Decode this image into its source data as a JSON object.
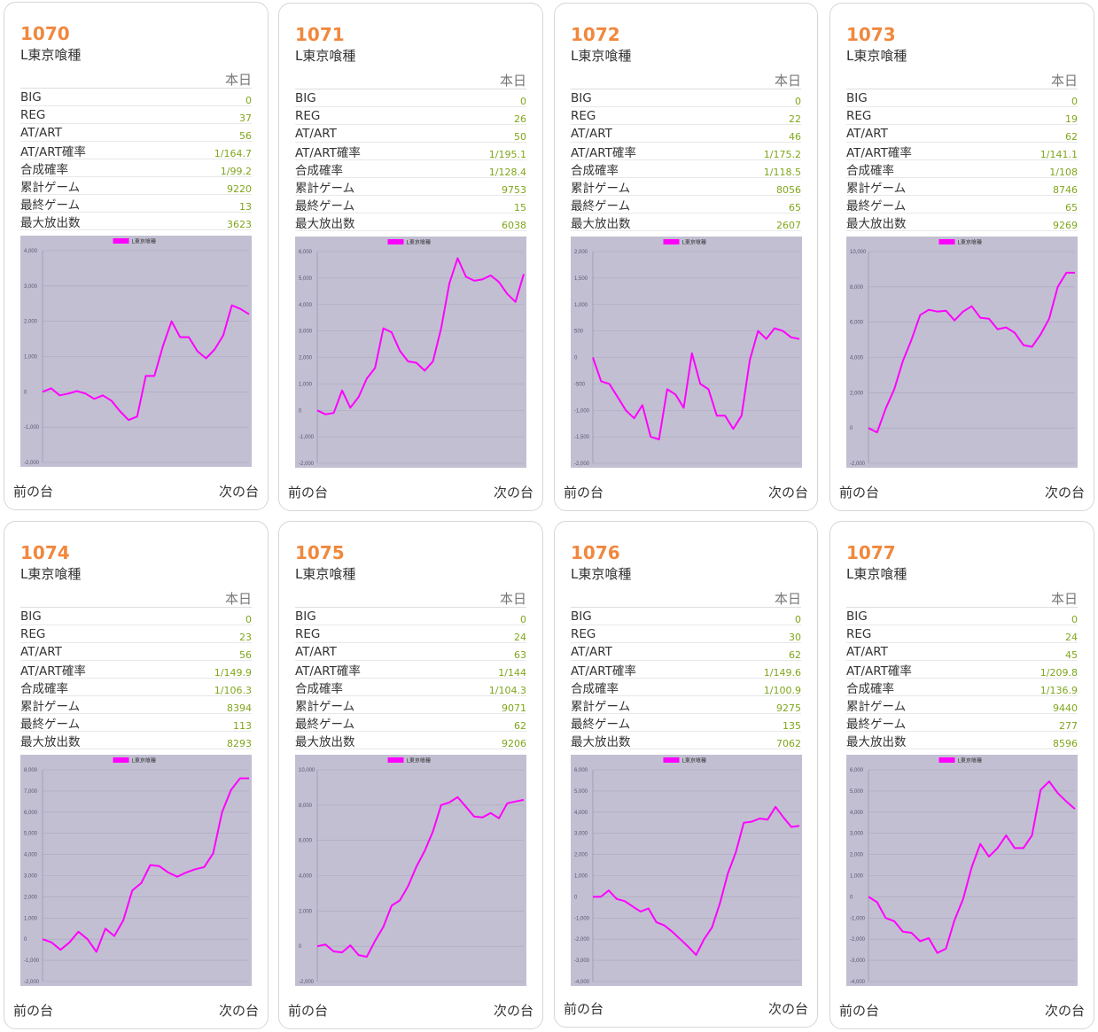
{
  "stat_header": "本日",
  "stat_labels": [
    "BIG",
    "REG",
    "AT/ART",
    "AT/ART確率",
    "合成確率",
    "累計ゲーム",
    "最終ゲーム",
    "最大放出数"
  ],
  "nav": {
    "prev": "前の台",
    "next": "次の台"
  },
  "colors": {
    "number": "#f0883e",
    "value": "#7fa61b",
    "line": "#ff00ff",
    "plot_bg": "#c2bfd2"
  },
  "machines": [
    {
      "number": "1070",
      "name": "L東京喰種",
      "stats": [
        "0",
        "37",
        "56",
        "1/164.7",
        "1/99.2",
        "9220",
        "13",
        "3623"
      ],
      "chart_data": {
        "type": "line",
        "legend": "L東京喰種",
        "ylim": [
          -2000,
          4000
        ],
        "yticks": [
          "4,000",
          "3,000",
          "2,000",
          "1,000",
          "0",
          "-1,000",
          "-2,000"
        ],
        "values": [
          0,
          100,
          -100,
          -50,
          20,
          -50,
          -200,
          -100,
          -250,
          -550,
          -800,
          -700,
          450,
          450,
          1300,
          2000,
          1550,
          1550,
          1150,
          950,
          1200,
          1600,
          2450,
          2350,
          2200
        ]
      }
    },
    {
      "number": "1071",
      "name": "L東京喰種",
      "stats": [
        "0",
        "26",
        "50",
        "1/195.1",
        "1/128.4",
        "9753",
        "15",
        "6038"
      ],
      "chart_data": {
        "type": "line",
        "legend": "L東京喰種",
        "ylim": [
          -2000,
          6000
        ],
        "yticks": [
          "6,000",
          "5,000",
          "4,000",
          "3,000",
          "2,000",
          "1,000",
          "0",
          "-1,000",
          "-2,000"
        ],
        "values": [
          0,
          -150,
          -100,
          750,
          100,
          500,
          1200,
          1600,
          3100,
          2950,
          2250,
          1850,
          1800,
          1500,
          1850,
          3100,
          4800,
          5750,
          5050,
          4900,
          4950,
          5100,
          4850,
          4400,
          4100,
          5150
        ]
      }
    },
    {
      "number": "1072",
      "name": "L東京喰種",
      "stats": [
        "0",
        "22",
        "46",
        "1/175.2",
        "1/118.5",
        "8056",
        "65",
        "2607"
      ],
      "chart_data": {
        "type": "line",
        "legend": "L東京喰種",
        "ylim": [
          -2000,
          2000
        ],
        "yticks": [
          "2,000",
          "1,500",
          "1,000",
          "500",
          "0",
          "-500",
          "-1,000",
          "-1,500",
          "-2,000"
        ],
        "values": [
          0,
          -450,
          -500,
          -750,
          -1000,
          -1150,
          -900,
          -1500,
          -1550,
          -600,
          -700,
          -950,
          80,
          -500,
          -600,
          -1100,
          -1100,
          -1350,
          -1100,
          -50,
          500,
          350,
          550,
          500,
          380,
          350
        ]
      }
    },
    {
      "number": "1073",
      "name": "L東京喰種",
      "stats": [
        "0",
        "19",
        "62",
        "1/141.1",
        "1/108",
        "8746",
        "65",
        "9269"
      ],
      "chart_data": {
        "type": "line",
        "legend": "L東京喰種",
        "ylim": [
          -2000,
          10000
        ],
        "yticks": [
          "10,000",
          "8,000",
          "6,000",
          "4,000",
          "2,000",
          "0",
          "-2,000"
        ],
        "values": [
          0,
          -250,
          1100,
          2200,
          3800,
          5000,
          6400,
          6700,
          6600,
          6650,
          6100,
          6600,
          6900,
          6250,
          6200,
          5600,
          5700,
          5400,
          4700,
          4600,
          5300,
          6200,
          8000,
          8800,
          8800
        ]
      }
    },
    {
      "number": "1074",
      "name": "L東京喰種",
      "stats": [
        "0",
        "23",
        "56",
        "1/149.9",
        "1/106.3",
        "8394",
        "113",
        "8293"
      ],
      "chart_data": {
        "type": "line",
        "legend": "L東京喰種",
        "ylim": [
          -2000,
          8000
        ],
        "yticks": [
          "8,000",
          "7,000",
          "6,000",
          "5,000",
          "4,000",
          "3,000",
          "2,000",
          "1,000",
          "0",
          "-1,000",
          "-2,000"
        ],
        "values": [
          0,
          -150,
          -500,
          -150,
          350,
          0,
          -600,
          500,
          150,
          900,
          2300,
          2650,
          3500,
          3450,
          3150,
          2950,
          3150,
          3300,
          3400,
          4050,
          6000,
          7050,
          7600,
          7600
        ]
      }
    },
    {
      "number": "1075",
      "name": "L東京喰種",
      "stats": [
        "0",
        "24",
        "63",
        "1/144",
        "1/104.3",
        "9071",
        "62",
        "9206"
      ],
      "chart_data": {
        "type": "line",
        "legend": "L東京喰種",
        "ylim": [
          -2000,
          10000
        ],
        "yticks": [
          "10,000",
          "8,000",
          "6,000",
          "4,000",
          "2,000",
          "0",
          "-2,000"
        ],
        "values": [
          0,
          100,
          -300,
          -350,
          50,
          -500,
          -600,
          300,
          1100,
          2300,
          2600,
          3400,
          4500,
          5400,
          6500,
          8000,
          8150,
          8450,
          7900,
          7350,
          7300,
          7550,
          7250,
          8100,
          8200,
          8300
        ]
      }
    },
    {
      "number": "1076",
      "name": "L東京喰種",
      "stats": [
        "0",
        "30",
        "62",
        "1/149.6",
        "1/100.9",
        "9275",
        "135",
        "7062"
      ],
      "chart_data": {
        "type": "line",
        "legend": "L東京喰種",
        "ylim": [
          -4000,
          6000
        ],
        "yticks": [
          "6,000",
          "5,000",
          "4,000",
          "3,000",
          "2,000",
          "1,000",
          "0",
          "-1,000",
          "-2,000",
          "-3,000",
          "-4,000"
        ],
        "values": [
          0,
          0,
          300,
          -100,
          -200,
          -450,
          -700,
          -550,
          -1200,
          -1350,
          -1650,
          -2000,
          -2350,
          -2750,
          -2000,
          -1450,
          -300,
          1100,
          2100,
          3500,
          3550,
          3700,
          3650,
          4250,
          3750,
          3300,
          3350
        ]
      }
    },
    {
      "number": "1077",
      "name": "L東京喰種",
      "stats": [
        "0",
        "24",
        "45",
        "1/209.8",
        "1/136.9",
        "9440",
        "277",
        "8596"
      ],
      "chart_data": {
        "type": "line",
        "legend": "L東京喰種",
        "ylim": [
          -4000,
          6000
        ],
        "yticks": [
          "6,000",
          "5,000",
          "4,000",
          "3,000",
          "2,000",
          "1,000",
          "0",
          "-1,000",
          "-2,000",
          "-3,000",
          "-4,000"
        ],
        "values": [
          0,
          -250,
          -1000,
          -1150,
          -1650,
          -1700,
          -2100,
          -1950,
          -2650,
          -2450,
          -1100,
          -100,
          1400,
          2500,
          1900,
          2300,
          2900,
          2300,
          2300,
          2900,
          5050,
          5450,
          4900,
          4500,
          4150
        ]
      }
    }
  ]
}
